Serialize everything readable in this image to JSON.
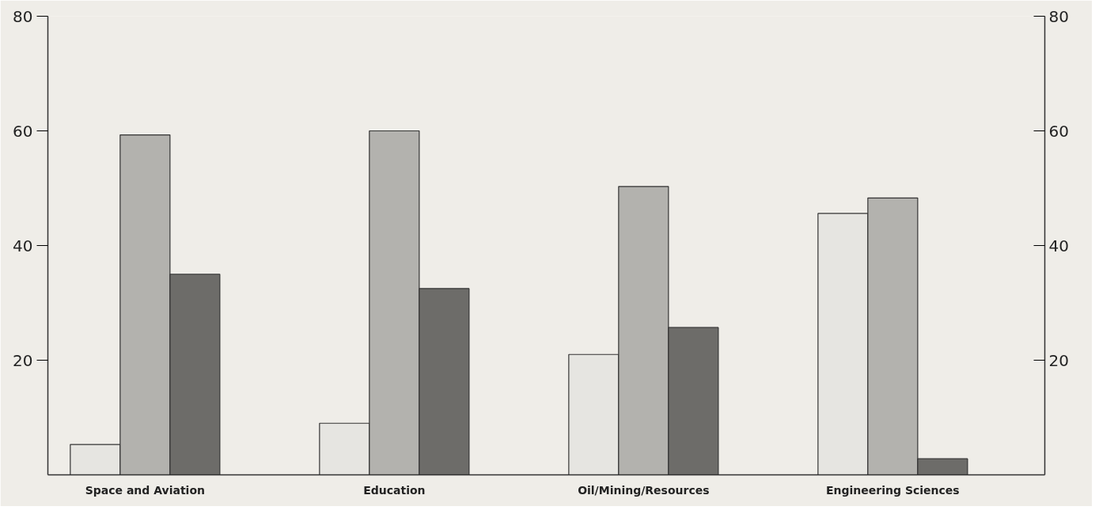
{
  "chart_data": {
    "type": "bar",
    "categories": [
      "Space and Aviation",
      "Education",
      "Oil/Mining/Resources",
      "Engineering Sciences"
    ],
    "series": [
      {
        "color": "#e6e5e1",
        "values": [
          5.3,
          9,
          21,
          45.6
        ]
      },
      {
        "color": "#b3b2ae",
        "values": [
          59.3,
          60,
          50.3,
          48.3
        ]
      },
      {
        "color": "#6d6c69",
        "values": [
          35,
          32.5,
          25.7,
          2.8
        ]
      }
    ],
    "ylim": [
      0,
      80
    ],
    "yticks": [
      20,
      40,
      60,
      80
    ],
    "y2lim": [
      0,
      80
    ],
    "y2ticks": [
      20,
      40,
      60,
      80
    ],
    "grid": false
  }
}
